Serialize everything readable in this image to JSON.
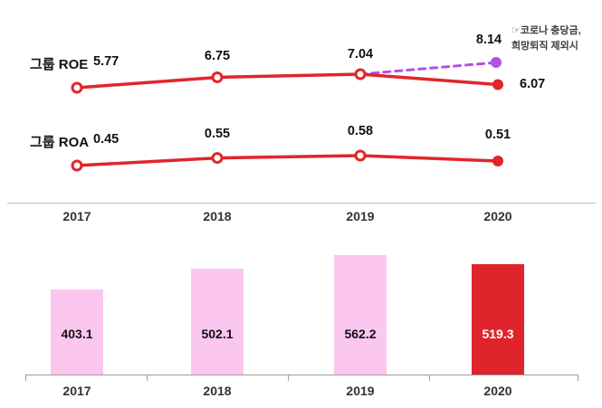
{
  "colors": {
    "line_red": "#e0262b",
    "bar_pink": "#fcc7ee",
    "bar_red": "#e0242b",
    "dash_purple": "#b44fe8",
    "text_dark": "#111111"
  },
  "annotation": {
    "prefix": "☞",
    "line1": "코로나 충당금,",
    "line2": "희망퇴직 제외시"
  },
  "chart_data": [
    {
      "type": "line",
      "title": "그룹 ROE",
      "categories": [
        "2017",
        "2018",
        "2019",
        "2020"
      ],
      "values": [
        5.77,
        6.75,
        7.04,
        6.07
      ],
      "marker_style": "open-circles-with-filled-last",
      "extension": {
        "value": 8.14,
        "style": "dashed",
        "color": "purple",
        "from_category": "2019",
        "note": "코로나 충당금, 희망퇴직 제외시"
      }
    },
    {
      "type": "line",
      "title": "그룹 ROA",
      "categories": [
        "2017",
        "2018",
        "2019",
        "2020"
      ],
      "values": [
        0.45,
        0.55,
        0.58,
        0.51
      ],
      "marker_style": "open-circles-with-filled-last"
    },
    {
      "type": "bar",
      "categories": [
        "2017",
        "2018",
        "2019",
        "2020"
      ],
      "values": [
        403.1,
        502.1,
        562.2,
        519.3
      ],
      "highlight_category": "2020",
      "grid": false,
      "legend": "none"
    }
  ]
}
